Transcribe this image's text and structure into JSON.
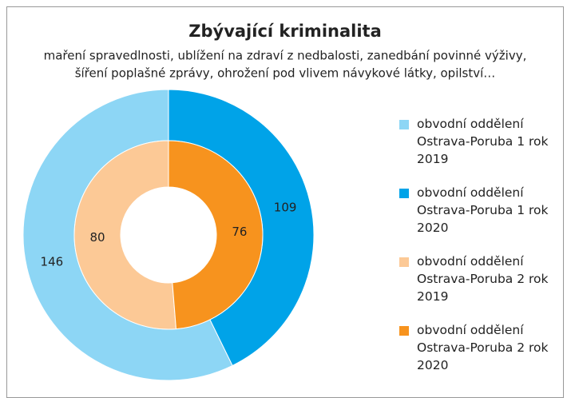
{
  "chart_data": {
    "type": "doughnut",
    "title": "Zbývající kriminalita",
    "subtitle": [
      "maření spravedlnosti, ublížení na zdraví z nedbalosti, zanedbání povinné výživy,",
      "šíření poplašné zprávy, ohrožení pod vlivem návykové látky, opilství…"
    ],
    "series": [
      {
        "labels": [
          "obvodní oddělení Ostrava-Poruba 1 rok 2019",
          "obvodní oddělení Ostrava-Poruba 1 rok 2020"
        ],
        "colors": [
          "#8dd6f5",
          "#00a3e8"
        ],
        "values": [
          146,
          109
        ]
      },
      {
        "labels": [
          "obvodní oddělení Ostrava-Poruba 2 rok 2019",
          "obvodní oddělení Ostrava-Poruba 2 rok 2020"
        ],
        "colors": [
          "#fcc996",
          "#f7931e"
        ],
        "values": [
          80,
          76
        ]
      }
    ]
  }
}
